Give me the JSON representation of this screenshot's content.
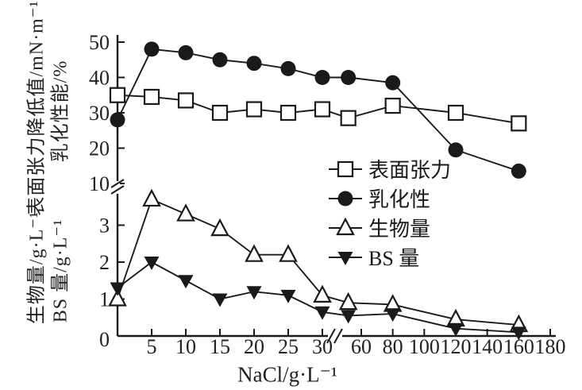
{
  "chart_data": {
    "type": "line",
    "title": "",
    "xlabel": "NaCl/g·L⁻¹",
    "x": [
      0,
      5,
      10,
      15,
      20,
      25,
      30,
      50,
      80,
      120,
      160
    ],
    "x_axis": {
      "label": "NaCl/g·L⁻¹",
      "ticks": [
        5,
        10,
        15,
        20,
        25,
        30,
        60,
        80,
        100,
        120,
        140,
        160,
        180
      ],
      "origin_label": "0",
      "break_between": [
        30,
        60
      ]
    },
    "y_axis": {
      "upper": {
        "labels": [
          "表面张力降低值/mN·m⁻¹",
          "乳化性能/%"
        ],
        "ticks": [
          50,
          40,
          30,
          20,
          10
        ],
        "range": [
          10,
          50
        ]
      },
      "lower": {
        "labels": [
          "生物量/g·L⁻¹",
          "BS 量/g·L⁻¹"
        ],
        "ticks": [
          3,
          2,
          1,
          0
        ],
        "range": [
          0,
          4
        ]
      },
      "break_between": [
        3,
        10
      ]
    },
    "series": [
      {
        "key": "surface_tension",
        "name": "表面张力",
        "marker": "open-square",
        "axis": "upper",
        "values": [
          35,
          34.5,
          33.5,
          30,
          31,
          30,
          31,
          28.5,
          32,
          30,
          27
        ]
      },
      {
        "key": "emulsification",
        "name": "乳化性",
        "marker": "filled-circle",
        "axis": "upper",
        "values": [
          28,
          48,
          47,
          45,
          44,
          42.5,
          40,
          40,
          38.5,
          19.5,
          13.5
        ]
      },
      {
        "key": "biomass",
        "name": "生物量",
        "marker": "open-triangle-up",
        "axis": "lower",
        "values": [
          1.0,
          3.7,
          3.3,
          2.9,
          2.2,
          2.2,
          1.1,
          0.9,
          0.85,
          0.45,
          0.3
        ]
      },
      {
        "key": "bs_amount",
        "name": "BS 量",
        "marker": "filled-triangle-down",
        "axis": "lower",
        "values": [
          1.3,
          2.0,
          1.5,
          1.0,
          1.2,
          1.1,
          0.65,
          0.55,
          0.6,
          0.2,
          0.1
        ]
      }
    ],
    "legend_position": "middle-right",
    "grid": false,
    "colors": {
      "line": "#1a1a1a",
      "background": "#ffffff"
    }
  }
}
